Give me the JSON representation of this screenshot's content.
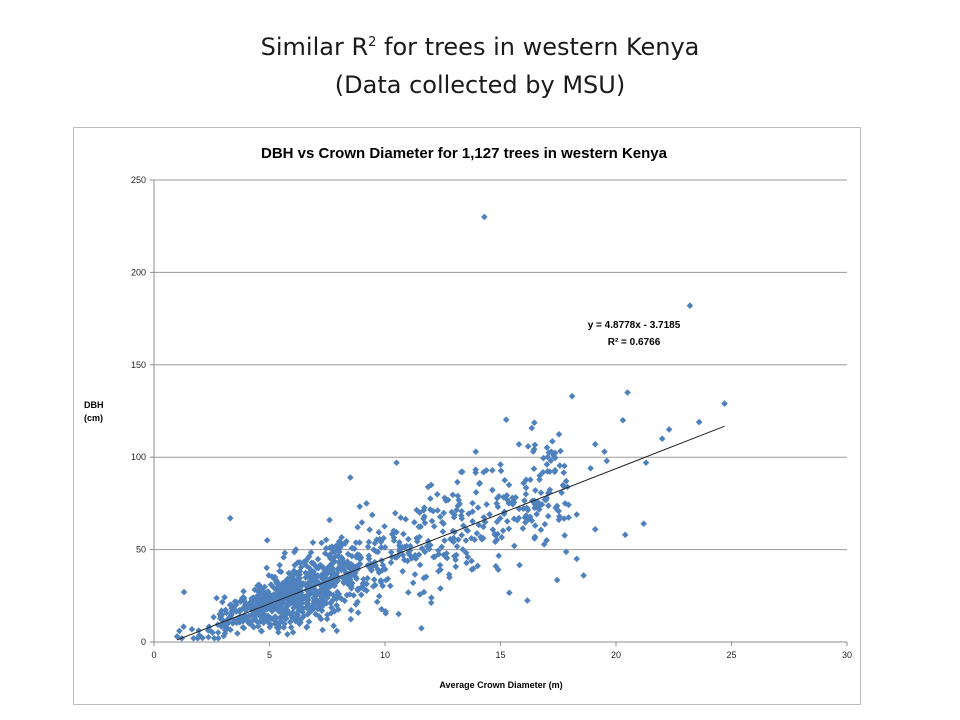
{
  "slide": {
    "title_line1_pre": "Similar R",
    "title_line1_sup": "2",
    "title_line1_post": " for trees in western Kenya",
    "title_line2": "(Data collected by MSU)"
  },
  "chart_data": {
    "type": "scatter",
    "title": "DBH vs Crown Diameter for 1,127 trees in western Kenya",
    "xlabel": "Average Crown Diameter (m)",
    "ylabel_line1": "DBH",
    "ylabel_line2": "(cm)",
    "xlim": [
      0,
      30
    ],
    "ylim": [
      0,
      250
    ],
    "xticks": [
      0,
      5,
      10,
      15,
      20,
      25,
      30
    ],
    "yticks": [
      0,
      50,
      100,
      150,
      200,
      250
    ],
    "grid": "horizontal",
    "marker_color": "#4F81BD",
    "trendline": {
      "slope": 4.8778,
      "intercept": -3.7185,
      "x_range": [
        1,
        24.7
      ],
      "color": "#222222"
    },
    "equation_text": "y = 4.8778x - 3.7185",
    "r2_text": "R² = 0.6766",
    "cloud": {
      "count": 1100,
      "x_mode": 6,
      "x_min": 1,
      "x_max": 23,
      "slope": 4.8778,
      "intercept": -3.7185
    },
    "notable_points": [
      {
        "x": 14.3,
        "y": 230
      },
      {
        "x": 23.2,
        "y": 182
      },
      {
        "x": 24.7,
        "y": 129
      },
      {
        "x": 20.5,
        "y": 135
      },
      {
        "x": 18.1,
        "y": 133
      },
      {
        "x": 23.6,
        "y": 119
      },
      {
        "x": 22.3,
        "y": 115
      },
      {
        "x": 20.3,
        "y": 120
      },
      {
        "x": 22.0,
        "y": 110
      },
      {
        "x": 19.5,
        "y": 103
      },
      {
        "x": 15.8,
        "y": 107
      },
      {
        "x": 17.2,
        "y": 103
      },
      {
        "x": 21.3,
        "y": 97
      },
      {
        "x": 19.6,
        "y": 98
      },
      {
        "x": 18.9,
        "y": 94
      },
      {
        "x": 19.1,
        "y": 107
      },
      {
        "x": 10.5,
        "y": 97
      },
      {
        "x": 15.0,
        "y": 96
      },
      {
        "x": 8.5,
        "y": 89
      },
      {
        "x": 18.3,
        "y": 45
      },
      {
        "x": 18.6,
        "y": 36
      },
      {
        "x": 20.4,
        "y": 58
      },
      {
        "x": 21.2,
        "y": 64
      },
      {
        "x": 19.1,
        "y": 61
      },
      {
        "x": 3.3,
        "y": 67
      },
      {
        "x": 1.3,
        "y": 27
      },
      {
        "x": 1.0,
        "y": 3
      },
      {
        "x": 1.1,
        "y": 6
      },
      {
        "x": 16.5,
        "y": 63
      },
      {
        "x": 17.0,
        "y": 55
      },
      {
        "x": 15.6,
        "y": 52
      },
      {
        "x": 14.8,
        "y": 41
      },
      {
        "x": 12.4,
        "y": 29
      },
      {
        "x": 16.1,
        "y": 80
      },
      {
        "x": 17.8,
        "y": 75
      },
      {
        "x": 16.0,
        "y": 86
      },
      {
        "x": 14.1,
        "y": 86
      },
      {
        "x": 18.3,
        "y": 69
      },
      {
        "x": 16.7,
        "y": 90
      },
      {
        "x": 13.3,
        "y": 92
      },
      {
        "x": 11.5,
        "y": 70
      },
      {
        "x": 9.2,
        "y": 75
      },
      {
        "x": 12.0,
        "y": 85
      },
      {
        "x": 4.9,
        "y": 55
      },
      {
        "x": 7.6,
        "y": 66
      }
    ]
  }
}
